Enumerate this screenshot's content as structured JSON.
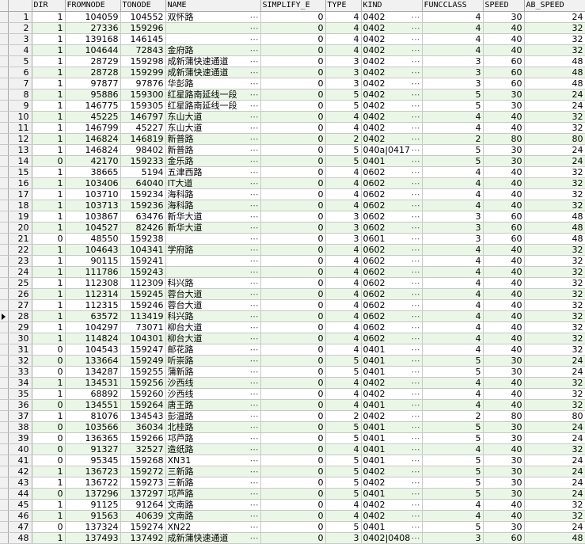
{
  "columns": [
    "DIR",
    "FROMNODE",
    "TONODE",
    "NAME",
    "SIMPLIFY_E",
    "TYPE",
    "KIND",
    "FUNCCLASS",
    "SPEED",
    "AB_SPEED"
  ],
  "current_row": 28,
  "rows": [
    [
      "1",
      "104059",
      "104552",
      "双怀路",
      "0",
      "4",
      "0402",
      "4",
      "30",
      "24"
    ],
    [
      "1",
      "27336",
      "159296",
      "",
      "0",
      "4",
      "0402",
      "4",
      "40",
      "32"
    ],
    [
      "1",
      "139168",
      "146145",
      "",
      "0",
      "4",
      "0402",
      "4",
      "40",
      "32"
    ],
    [
      "1",
      "104644",
      "72843",
      "金府路",
      "0",
      "4",
      "0402",
      "4",
      "40",
      "32"
    ],
    [
      "1",
      "28729",
      "159298",
      "成新蒲快速通道",
      "0",
      "3",
      "0402",
      "3",
      "60",
      "48"
    ],
    [
      "1",
      "28728",
      "159299",
      "成新蒲快速通道",
      "0",
      "3",
      "0402",
      "3",
      "60",
      "48"
    ],
    [
      "1",
      "97877",
      "97876",
      "华彭路",
      "0",
      "3",
      "0402",
      "3",
      "60",
      "48"
    ],
    [
      "1",
      "95886",
      "159300",
      "红星路南延线一段",
      "0",
      "5",
      "0402",
      "5",
      "30",
      "24"
    ],
    [
      "1",
      "146775",
      "159305",
      "红星路南延线一段",
      "0",
      "5",
      "0402",
      "5",
      "30",
      "24"
    ],
    [
      "1",
      "45225",
      "146797",
      "东山大道",
      "0",
      "4",
      "0402",
      "4",
      "40",
      "32"
    ],
    [
      "1",
      "146799",
      "45227",
      "东山大道",
      "0",
      "4",
      "0402",
      "4",
      "40",
      "32"
    ],
    [
      "1",
      "146824",
      "146819",
      "新普路",
      "0",
      "2",
      "0402",
      "2",
      "80",
      "80"
    ],
    [
      "1",
      "146824",
      "98402",
      "新普路",
      "0",
      "5",
      "040a|0417",
      "5",
      "30",
      "24"
    ],
    [
      "0",
      "42170",
      "159233",
      "金乐路",
      "0",
      "5",
      "0401",
      "5",
      "30",
      "24"
    ],
    [
      "1",
      "38665",
      "5194",
      "五津西路",
      "0",
      "4",
      "0602",
      "4",
      "40",
      "32"
    ],
    [
      "1",
      "103406",
      "64040",
      "IT大道",
      "0",
      "4",
      "0602",
      "4",
      "40",
      "32"
    ],
    [
      "1",
      "103710",
      "159234",
      "海科路",
      "0",
      "4",
      "0602",
      "4",
      "40",
      "32"
    ],
    [
      "1",
      "103713",
      "159236",
      "海科路",
      "0",
      "4",
      "0602",
      "4",
      "40",
      "32"
    ],
    [
      "1",
      "103867",
      "63476",
      "新华大道",
      "0",
      "3",
      "0602",
      "3",
      "60",
      "48"
    ],
    [
      "1",
      "104527",
      "82426",
      "新华大道",
      "0",
      "3",
      "0602",
      "3",
      "60",
      "48"
    ],
    [
      "0",
      "48550",
      "159238",
      "",
      "0",
      "3",
      "0601",
      "3",
      "60",
      "48"
    ],
    [
      "1",
      "104643",
      "104341",
      "学府路",
      "0",
      "4",
      "0602",
      "4",
      "40",
      "32"
    ],
    [
      "1",
      "90115",
      "159241",
      "",
      "0",
      "4",
      "0602",
      "4",
      "40",
      "32"
    ],
    [
      "1",
      "111786",
      "159243",
      "",
      "0",
      "4",
      "0602",
      "4",
      "40",
      "32"
    ],
    [
      "1",
      "112308",
      "112309",
      "科兴路",
      "0",
      "4",
      "0602",
      "4",
      "40",
      "32"
    ],
    [
      "1",
      "112314",
      "159245",
      "蓉台大道",
      "0",
      "4",
      "0602",
      "4",
      "40",
      "32"
    ],
    [
      "1",
      "112315",
      "159246",
      "蓉台大道",
      "0",
      "4",
      "0602",
      "4",
      "40",
      "32"
    ],
    [
      "1",
      "63572",
      "113419",
      "科兴路",
      "0",
      "4",
      "0602",
      "4",
      "40",
      "32"
    ],
    [
      "1",
      "104297",
      "73071",
      "柳台大道",
      "0",
      "4",
      "0602",
      "4",
      "40",
      "32"
    ],
    [
      "1",
      "114824",
      "104301",
      "柳台大道",
      "0",
      "4",
      "0602",
      "4",
      "40",
      "32"
    ],
    [
      "0",
      "104543",
      "159247",
      "邮花路",
      "0",
      "4",
      "0401",
      "4",
      "40",
      "32"
    ],
    [
      "0",
      "133664",
      "159249",
      "听崇路",
      "0",
      "5",
      "0401",
      "5",
      "30",
      "24"
    ],
    [
      "0",
      "134287",
      "159255",
      "蒲新路",
      "0",
      "5",
      "0401",
      "5",
      "30",
      "24"
    ],
    [
      "1",
      "134531",
      "159256",
      "沙西线",
      "0",
      "4",
      "0402",
      "4",
      "40",
      "32"
    ],
    [
      "1",
      "68892",
      "159260",
      "沙西线",
      "0",
      "4",
      "0402",
      "4",
      "40",
      "32"
    ],
    [
      "0",
      "134551",
      "159264",
      "唐王路",
      "0",
      "4",
      "0401",
      "4",
      "40",
      "32"
    ],
    [
      "1",
      "81076",
      "134543",
      "彭温路",
      "0",
      "2",
      "0402",
      "2",
      "80",
      "80"
    ],
    [
      "0",
      "103566",
      "36034",
      "北桂路",
      "0",
      "5",
      "0401",
      "5",
      "30",
      "24"
    ],
    [
      "0",
      "136365",
      "159266",
      "邛芦路",
      "0",
      "5",
      "0401",
      "5",
      "30",
      "24"
    ],
    [
      "0",
      "91327",
      "32527",
      "造纸路",
      "0",
      "4",
      "0401",
      "4",
      "40",
      "32"
    ],
    [
      "0",
      "95345",
      "159268",
      "XN31",
      "0",
      "5",
      "0401",
      "5",
      "30",
      "24"
    ],
    [
      "1",
      "136723",
      "159272",
      "三新路",
      "0",
      "5",
      "0402",
      "5",
      "30",
      "24"
    ],
    [
      "1",
      "136722",
      "159273",
      "三新路",
      "0",
      "5",
      "0402",
      "5",
      "30",
      "24"
    ],
    [
      "0",
      "137296",
      "137297",
      "邛芦路",
      "0",
      "5",
      "0401",
      "5",
      "30",
      "24"
    ],
    [
      "1",
      "91125",
      "91264",
      "文南路",
      "0",
      "4",
      "0402",
      "4",
      "40",
      "32"
    ],
    [
      "1",
      "91563",
      "40639",
      "文南路",
      "0",
      "4",
      "0402",
      "4",
      "40",
      "32"
    ],
    [
      "0",
      "137324",
      "159274",
      "XN22",
      "0",
      "5",
      "0401",
      "5",
      "30",
      "24"
    ],
    [
      "1",
      "137493",
      "137492",
      "成新蒲快速通道",
      "0",
      "3",
      "0402|0408",
      "3",
      "60",
      "48"
    ]
  ]
}
